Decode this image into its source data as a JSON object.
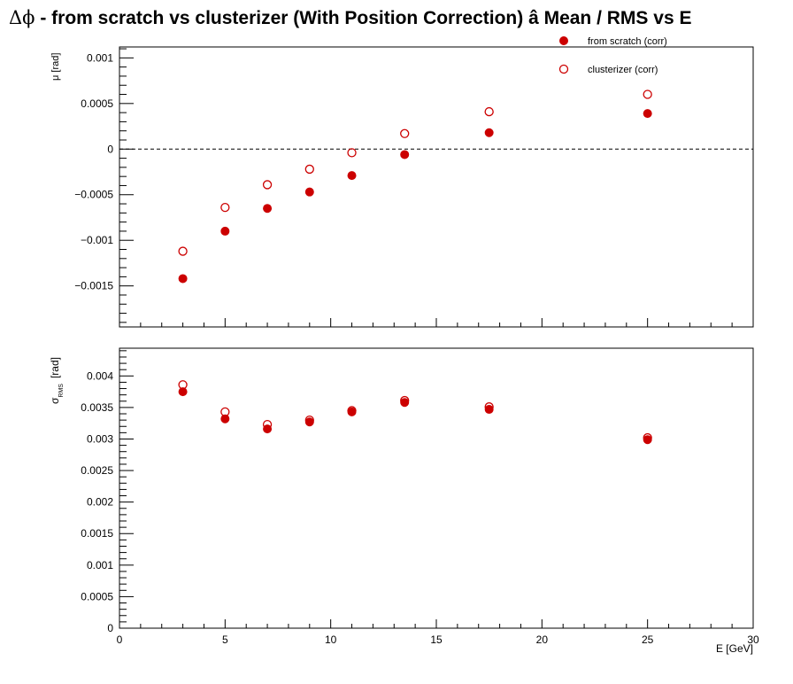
{
  "title": {
    "symbol": "Δϕ",
    "text": "-  from scratch vs clusterizer  (With Position Correction)  â  Mean / RMS vs E"
  },
  "colors": {
    "series": "#cc0000",
    "axis": "#000000"
  },
  "chart_data": [
    {
      "type": "scatter",
      "panel": "top",
      "ylabel": "μ  [rad]",
      "xlabel": "",
      "xlim": [
        0,
        30
      ],
      "ylim": [
        -0.00195,
        0.00112
      ],
      "yticks": [
        -0.0015,
        -0.001,
        -0.0005,
        0,
        0.0005,
        0.001
      ],
      "yticklabels": [
        "−0.0015",
        "−0.001",
        "−0.0005",
        "0",
        "0.0005",
        "0.001"
      ],
      "reference_line": 0,
      "legend": [
        "from scratch (corr)",
        "clusterizer (corr)"
      ],
      "legend_position": "top-right",
      "series": [
        {
          "name": "from scratch (corr)",
          "marker": "filled-circle",
          "x": [
            3,
            5,
            7,
            9,
            11,
            13.5,
            17.5,
            25
          ],
          "y": [
            -0.00142,
            -0.0009,
            -0.00065,
            -0.00047,
            -0.00029,
            -6e-05,
            0.00018,
            0.00039
          ]
        },
        {
          "name": "clusterizer (corr)",
          "marker": "open-circle",
          "x": [
            3,
            5,
            7,
            9,
            11,
            13.5,
            17.5,
            25
          ],
          "y": [
            -0.00112,
            -0.00064,
            -0.00039,
            -0.00022,
            -4e-05,
            0.00017,
            0.00041,
            0.0006
          ]
        }
      ]
    },
    {
      "type": "scatter",
      "panel": "bottom",
      "ylabel_main": "σ",
      "ylabel_sub": "RMS",
      "ylabel_unit": "[rad]",
      "xlabel": "E  [GeV]",
      "xlim": [
        0,
        30
      ],
      "ylim": [
        0,
        0.00444
      ],
      "xticks": [
        0,
        5,
        10,
        15,
        20,
        25,
        30
      ],
      "xticklabels": [
        "0",
        "5",
        "10",
        "15",
        "20",
        "25",
        "30"
      ],
      "yticks": [
        0,
        0.0005,
        0.001,
        0.0015,
        0.002,
        0.0025,
        0.003,
        0.0035,
        0.004
      ],
      "yticklabels": [
        "0",
        "0.0005",
        "0.001",
        "0.0015",
        "0.002",
        "0.0025",
        "0.003",
        "0.0035",
        "0.004"
      ],
      "series": [
        {
          "name": "from scratch (corr)",
          "marker": "filled-circle",
          "x": [
            3,
            5,
            7,
            9,
            11,
            13.5,
            17.5,
            25
          ],
          "y": [
            0.00375,
            0.00332,
            0.00316,
            0.00327,
            0.00343,
            0.00358,
            0.00347,
            0.00299
          ]
        },
        {
          "name": "clusterizer (corr)",
          "marker": "open-circle",
          "x": [
            3,
            5,
            7,
            9,
            11,
            13.5,
            17.5,
            25
          ],
          "y": [
            0.00386,
            0.00343,
            0.00323,
            0.0033,
            0.00345,
            0.00361,
            0.00351,
            0.00302
          ]
        }
      ]
    }
  ]
}
